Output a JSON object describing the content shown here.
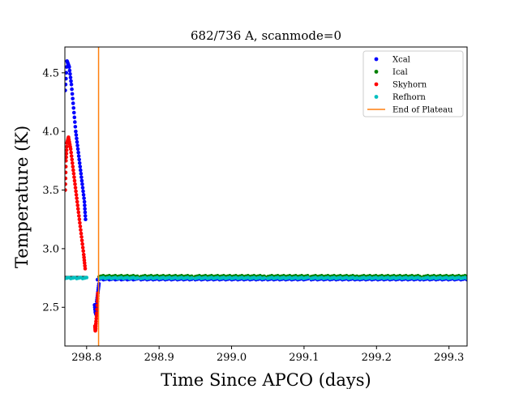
{
  "chart_data": {
    "type": "scatter",
    "title": "682/736 A, scanmode=0",
    "xlabel": "Time Since APCO (days)",
    "ylabel": "Temperature (K)",
    "xlim": [
      298.77,
      299.325
    ],
    "ylim": [
      2.17,
      4.72
    ],
    "xticks": [
      298.8,
      298.9,
      299.0,
      299.1,
      299.2,
      299.3
    ],
    "xtick_labels": [
      "298.8",
      "298.9",
      "299.0",
      "299.1",
      "299.2",
      "299.3"
    ],
    "yticks": [
      2.5,
      3.0,
      3.5,
      4.0,
      4.5
    ],
    "ytick_labels": [
      "2.5",
      "3.0",
      "3.5",
      "4.0",
      "4.5"
    ],
    "grid": false,
    "legend_position": "top-right",
    "series": [
      {
        "name": "Xcal",
        "color": "#0000ff",
        "decline": {
          "x": [
            298.7705,
            298.773,
            298.776,
            298.779,
            298.782,
            298.785,
            298.788,
            298.791,
            298.794,
            298.797,
            298.7985
          ],
          "y": [
            4.35,
            4.6,
            4.55,
            4.4,
            4.2,
            4.0,
            3.85,
            3.7,
            3.55,
            3.4,
            3.25
          ]
        },
        "transition": {
          "x": [
            298.811,
            298.812,
            298.813,
            298.8135,
            298.814,
            298.815,
            298.816,
            298.817
          ],
          "y": [
            2.52,
            2.46,
            2.44,
            2.48,
            2.55,
            2.6,
            2.65,
            2.7
          ]
        },
        "plateau_y": 2.74,
        "plateau_segments": [
          [
            298.815,
            298.87
          ],
          [
            298.875,
            298.945
          ],
          [
            298.95,
            299.045
          ],
          [
            299.05,
            299.105
          ],
          [
            299.11,
            299.173
          ],
          [
            299.177,
            299.26
          ],
          [
            299.265,
            299.325
          ]
        ]
      },
      {
        "name": "Ical",
        "color": "#008000",
        "plateau_y": 2.765,
        "plateau_segments": [
          [
            298.8175,
            298.87
          ],
          [
            298.875,
            298.945
          ],
          [
            298.95,
            299.045
          ],
          [
            299.05,
            299.105
          ],
          [
            299.11,
            299.173
          ],
          [
            299.177,
            299.26
          ],
          [
            299.265,
            299.325
          ]
        ]
      },
      {
        "name": "Skyhorn",
        "color": "#ff0000",
        "decline": {
          "x": [
            298.7705,
            298.7715,
            298.773,
            298.775,
            298.778,
            298.781,
            298.784,
            298.787,
            298.79,
            298.793,
            298.796,
            298.798
          ],
          "y": [
            3.5,
            3.75,
            3.9,
            3.95,
            3.85,
            3.7,
            3.55,
            3.4,
            3.25,
            3.1,
            2.95,
            2.83
          ]
        },
        "transition": {
          "x": [
            298.8115,
            298.812,
            298.8125,
            298.813,
            298.814,
            298.815,
            298.8155
          ],
          "y": [
            2.34,
            2.3,
            2.32,
            2.38,
            2.45,
            2.55,
            2.62
          ]
        }
      },
      {
        "name": "Refhorn",
        "color": "#00bfbf",
        "plateau_y": 2.75,
        "plateau_segments": [
          [
            298.77,
            298.8
          ],
          [
            298.8175,
            298.87
          ],
          [
            298.875,
            298.945
          ],
          [
            298.95,
            299.045
          ],
          [
            299.05,
            299.105
          ],
          [
            299.11,
            299.173
          ],
          [
            299.177,
            299.26
          ],
          [
            299.265,
            299.325
          ]
        ]
      }
    ],
    "vlines": [
      {
        "name": "End of Plateau",
        "x": 298.8165,
        "color": "#ff7f0e"
      }
    ]
  }
}
